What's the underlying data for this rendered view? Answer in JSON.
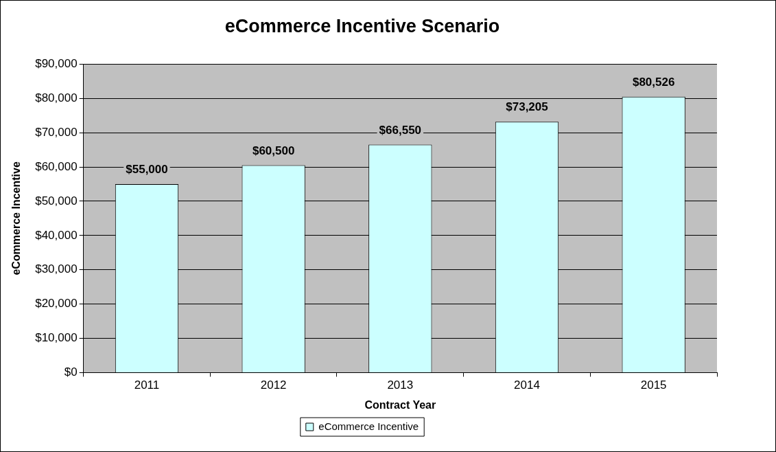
{
  "chart_data": {
    "type": "bar",
    "title": "eCommerce Incentive Scenario",
    "xlabel": "Contract Year",
    "ylabel": "eCommerce Incentive",
    "categories": [
      "2011",
      "2012",
      "2013",
      "2014",
      "2015"
    ],
    "series": [
      {
        "name": "eCommerce Incentive",
        "color": "#ccffff",
        "values": [
          55000,
          60500,
          66550,
          73205,
          80526
        ],
        "value_labels": [
          "$55,000",
          "$60,500",
          "$66,550",
          "$73,205",
          "$80,526"
        ]
      }
    ],
    "ylim": [
      0,
      90000
    ],
    "yticks": [
      {
        "value": 0,
        "label": "$0"
      },
      {
        "value": 10000,
        "label": "$10,000"
      },
      {
        "value": 20000,
        "label": "$20,000"
      },
      {
        "value": 30000,
        "label": "$30,000"
      },
      {
        "value": 40000,
        "label": "$40,000"
      },
      {
        "value": 50000,
        "label": "$50,000"
      },
      {
        "value": 60000,
        "label": "$60,000"
      },
      {
        "value": 70000,
        "label": "$70,000"
      },
      {
        "value": 80000,
        "label": "$80,000"
      },
      {
        "value": 90000,
        "label": "$90,000"
      }
    ],
    "grid": "y",
    "legend": "bottom"
  }
}
